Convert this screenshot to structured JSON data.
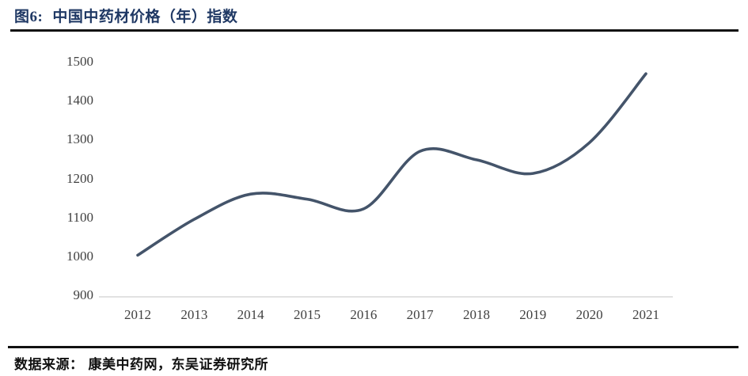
{
  "header": {
    "figure_label": "图6:",
    "title": "中国中药材价格（年）指数"
  },
  "footer": {
    "source_label": "数据来源：",
    "source_text": "康美中药网，东吴证券研究所"
  },
  "colors": {
    "title_navy": "#1F3864",
    "line": "#44546A",
    "axis_label": "#404040",
    "baseline": "#D9D9D9",
    "rule": "#111111"
  },
  "chart_data": {
    "type": "line",
    "title": "中国中药材价格（年）指数",
    "categories": [
      "2012",
      "2013",
      "2014",
      "2015",
      "2016",
      "2017",
      "2018",
      "2019",
      "2020",
      "2021"
    ],
    "values": [
      1003,
      1095,
      1160,
      1147,
      1122,
      1270,
      1248,
      1213,
      1292,
      1469
    ],
    "series": [
      {
        "name": "中国中药材价格（年）指数",
        "values": [
          1003,
          1095,
          1160,
          1147,
          1122,
          1270,
          1248,
          1213,
          1292,
          1469
        ]
      }
    ],
    "xlabel": "",
    "ylabel": "",
    "ylim": [
      900,
      1500
    ],
    "yticks": [
      900,
      1000,
      1100,
      1200,
      1300,
      1400,
      1500
    ],
    "grid": false,
    "legend": "none",
    "line_color": "#44546A",
    "smooth": true
  }
}
